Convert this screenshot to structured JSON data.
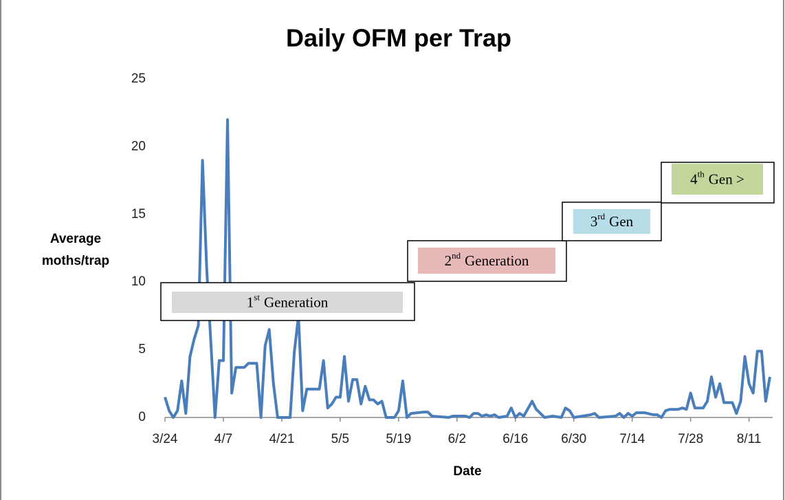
{
  "chart_data": {
    "type": "line",
    "title": "Daily OFM per Trap",
    "ylabel": [
      "Average",
      "moths/trap"
    ],
    "xlabel": "Date",
    "color": "#4a7ebb",
    "x": [
      "3/24",
      "3/25",
      "3/26",
      "3/27",
      "3/28",
      "3/29",
      "3/30",
      "3/31",
      "4/1",
      "4/2",
      "4/3",
      "4/4",
      "4/5",
      "4/6",
      "4/7",
      "4/8",
      "4/9",
      "4/10",
      "4/11",
      "4/12",
      "4/13",
      "4/14",
      "4/15",
      "4/16",
      "4/17",
      "4/18",
      "4/19",
      "4/20",
      "4/23",
      "4/24",
      "4/25",
      "4/26",
      "4/27",
      "4/30",
      "5/1",
      "5/2",
      "5/3",
      "5/4",
      "5/5",
      "5/6",
      "5/7",
      "5/8",
      "5/9",
      "5/10",
      "5/11",
      "5/12",
      "5/13",
      "5/14",
      "5/15",
      "5/16",
      "5/18",
      "5/19",
      "5/20",
      "5/21",
      "5/22",
      "5/25",
      "5/26",
      "5/27",
      "5/31",
      "6/1",
      "6/4",
      "6/5",
      "6/6",
      "6/7",
      "6/8",
      "6/9",
      "6/10",
      "6/11",
      "6/12",
      "6/14",
      "6/15",
      "6/16",
      "6/17",
      "6/18",
      "6/20",
      "6/21",
      "6/22",
      "6/23",
      "6/25",
      "6/27",
      "6/28",
      "6/29",
      "6/30",
      "7/4",
      "7/5",
      "7/6",
      "7/10",
      "7/11",
      "7/12",
      "7/13",
      "7/14",
      "7/15",
      "7/17",
      "7/19",
      "7/20",
      "7/21",
      "7/22",
      "7/23",
      "7/25",
      "7/26",
      "7/27",
      "7/28",
      "7/29",
      "7/31",
      "8/1",
      "8/2",
      "8/3",
      "8/4",
      "8/5",
      "8/7",
      "8/8",
      "8/9",
      "8/10",
      "8/11",
      "8/12",
      "8/13",
      "8/14",
      "8/15",
      "8/16"
    ],
    "values": [
      1.5,
      0.5,
      0,
      0.5,
      2.7,
      0.3,
      4.5,
      5.8,
      6.8,
      19,
      11,
      5.5,
      0,
      4.2,
      4.2,
      22,
      1.8,
      3.7,
      3.7,
      3.7,
      4,
      4,
      4,
      0,
      5.3,
      6.5,
      2.5,
      0,
      0,
      4.8,
      7.5,
      0.5,
      2.1,
      2.1,
      4.2,
      0.7,
      1,
      1.5,
      1.5,
      4.5,
      1.2,
      2.8,
      2.8,
      1,
      2.3,
      1.3,
      1.3,
      1,
      1.2,
      0,
      0,
      0.5,
      2.7,
      0,
      0.3,
      0.4,
      0.4,
      0.1,
      0,
      0.1,
      0.1,
      0,
      0.3,
      0.3,
      0.1,
      0.2,
      0.1,
      0.2,
      0,
      0.1,
      0.7,
      0,
      0.3,
      0.1,
      1.2,
      0.6,
      0.3,
      0,
      0.1,
      0,
      0.7,
      0.5,
      0,
      0.2,
      0.3,
      0,
      0.1,
      0.3,
      0,
      0.3,
      0.1,
      0.35,
      0.35,
      0.2,
      0.2,
      0,
      0.5,
      0.6,
      0.6,
      0.7,
      0.6,
      1.8,
      0.7,
      0.7,
      1.2,
      3,
      1.5,
      2.5,
      1.1,
      1.1,
      0.3,
      1.2,
      4.5,
      2.5,
      1.8,
      4.9,
      4.9,
      1.2,
      3
    ],
    "xlim": [
      "3/24",
      "8/16"
    ],
    "xticks": [
      "3/24",
      "4/7",
      "4/21",
      "5/5",
      "5/19",
      "6/2",
      "6/16",
      "6/30",
      "7/14",
      "7/28",
      "8/11"
    ],
    "ylim": [
      0,
      25
    ],
    "yticks": [
      0,
      5,
      10,
      15,
      20,
      25
    ],
    "grid": false,
    "annotations": [
      {
        "ordinal": "1",
        "suffix": "st",
        "text": "Generation",
        "color": "#d9d9d9"
      },
      {
        "ordinal": "2",
        "suffix": "nd",
        "text": "Generation",
        "color": "#e6b9b8"
      },
      {
        "ordinal": "3",
        "suffix": "rd",
        "text": "Gen",
        "color": "#b7dee8"
      },
      {
        "ordinal": "4",
        "suffix": "th",
        "text": "Gen >",
        "color": "#c3d69b"
      }
    ]
  }
}
